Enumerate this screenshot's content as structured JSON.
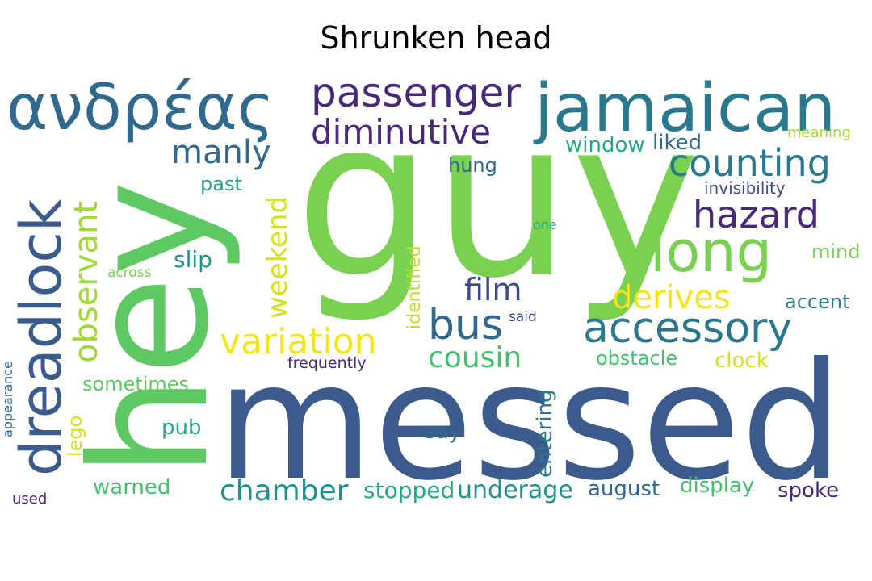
{
  "title": "Shrunken head",
  "palette": {
    "background": "#ffffff",
    "dark_purple": "#482878",
    "indigo": "#3e4a89",
    "blue": "#31688e",
    "steel": "#2a788e",
    "teal": "#21918c",
    "sea_green": "#22a884",
    "green": "#44bf70",
    "lime": "#7ad151",
    "yellow_green": "#bddf26",
    "yellow": "#f3e51c"
  },
  "words": [
    {
      "text": "guy",
      "color": "#7ad151"
    },
    {
      "text": "messed",
      "color": "#3b5b8c"
    },
    {
      "text": "hey",
      "color": "#5ec962"
    },
    {
      "text": "ανδρέας",
      "color": "#31688e"
    },
    {
      "text": "jamaican",
      "color": "#2a788e"
    },
    {
      "text": "dreadlock",
      "color": "#3b5b8c"
    },
    {
      "text": "passenger",
      "color": "#482878"
    },
    {
      "text": "diminutive",
      "color": "#482878"
    },
    {
      "text": "long",
      "color": "#7ad151"
    },
    {
      "text": "counting",
      "color": "#2a788e"
    },
    {
      "text": "hazard",
      "color": "#482878"
    },
    {
      "text": "accessory",
      "color": "#2a788e"
    },
    {
      "text": "manly",
      "color": "#31688e"
    },
    {
      "text": "observant",
      "color": "#a0da39"
    },
    {
      "text": "variation",
      "color": "#f3e51c"
    },
    {
      "text": "bus",
      "color": "#31688e"
    },
    {
      "text": "derives",
      "color": "#f3e51c"
    },
    {
      "text": "film",
      "color": "#3e4a89"
    },
    {
      "text": "cousin",
      "color": "#44bf70"
    },
    {
      "text": "weekend",
      "color": "#d2e21b"
    },
    {
      "text": "chamber",
      "color": "#21918c"
    },
    {
      "text": "underage",
      "color": "#21918c"
    },
    {
      "text": "stopped",
      "color": "#22a884"
    },
    {
      "text": "window",
      "color": "#22a884"
    },
    {
      "text": "liked",
      "color": "#31688e"
    },
    {
      "text": "hung",
      "color": "#31688e"
    },
    {
      "text": "past",
      "color": "#22a884"
    },
    {
      "text": "slip",
      "color": "#21918c"
    },
    {
      "text": "identified",
      "color": "#bddf26"
    },
    {
      "text": "invisibility",
      "color": "#3e4a89"
    },
    {
      "text": "mind",
      "color": "#7ad151"
    },
    {
      "text": "accent",
      "color": "#2a788e"
    },
    {
      "text": "obstacle",
      "color": "#44bf70"
    },
    {
      "text": "clock",
      "color": "#d2e21b"
    },
    {
      "text": "sometimes",
      "color": "#5ec962"
    },
    {
      "text": "pub",
      "color": "#22a884"
    },
    {
      "text": "say",
      "color": "#31688e"
    },
    {
      "text": "entering",
      "color": "#2a788e"
    },
    {
      "text": "lego",
      "color": "#d2e21b"
    },
    {
      "text": "warned",
      "color": "#44bf70"
    },
    {
      "text": "august",
      "color": "#31688e"
    },
    {
      "text": "display",
      "color": "#44bf70"
    },
    {
      "text": "spoke",
      "color": "#482878"
    },
    {
      "text": "meaning",
      "color": "#a0da39"
    },
    {
      "text": "one",
      "color": "#22a884"
    },
    {
      "text": "across",
      "color": "#7ad151"
    },
    {
      "text": "said",
      "color": "#3e4a89"
    },
    {
      "text": "frequently",
      "color": "#482878"
    },
    {
      "text": "appearance",
      "color": "#31688e"
    },
    {
      "text": "used",
      "color": "#482878"
    }
  ]
}
